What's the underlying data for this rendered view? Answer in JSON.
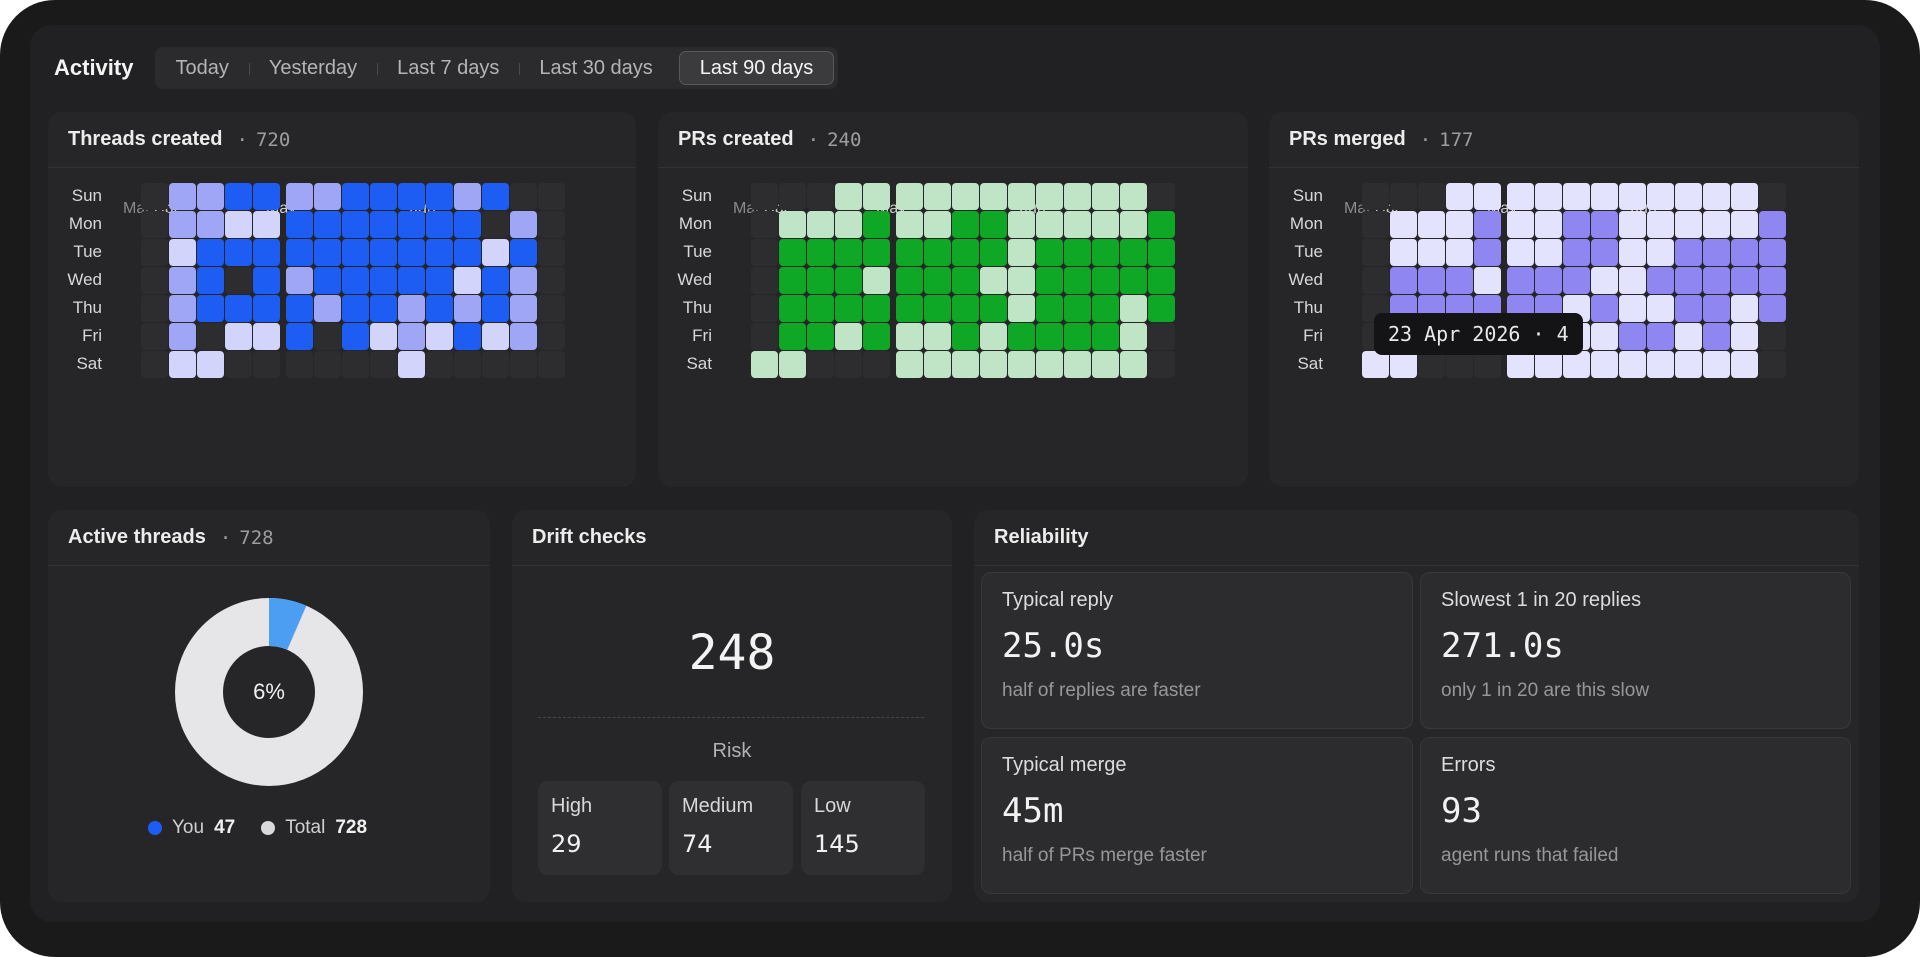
{
  "header": {
    "title": "Activity",
    "ranges": [
      "Today",
      "Yesterday",
      "Last 7 days",
      "Last 30 days",
      "Last 90 days"
    ],
    "active_range": "Last 90 days"
  },
  "heatmaps": [
    {
      "title": "Threads created",
      "count": "720",
      "months": [
        "Mar",
        "Apr",
        "May",
        "Jun"
      ],
      "days": [
        "Sun",
        "Mon",
        "Tue",
        "Wed",
        "Thu",
        "Fri",
        "Sat"
      ],
      "colors": [
        "#2d2d30",
        "#1e5df4",
        "#9ea6f5",
        "#d3d4fb"
      ],
      "levels": [
        [
          0,
          2,
          2,
          1,
          1,
          2,
          2,
          1,
          1,
          1,
          1,
          2,
          1,
          0,
          0
        ],
        [
          0,
          2,
          2,
          3,
          3,
          1,
          1,
          1,
          1,
          1,
          1,
          1,
          0,
          2,
          0
        ],
        [
          0,
          3,
          1,
          1,
          1,
          1,
          1,
          1,
          1,
          1,
          1,
          1,
          3,
          1,
          0
        ],
        [
          0,
          2,
          1,
          0,
          1,
          2,
          1,
          1,
          1,
          1,
          1,
          3,
          1,
          2,
          0
        ],
        [
          0,
          2,
          1,
          1,
          1,
          1,
          2,
          1,
          1,
          2,
          1,
          2,
          1,
          2,
          0
        ],
        [
          0,
          2,
          0,
          3,
          3,
          1,
          0,
          1,
          3,
          2,
          3,
          1,
          3,
          2,
          0
        ],
        [
          0,
          3,
          3,
          0,
          0,
          0,
          0,
          0,
          0,
          3,
          0,
          0,
          0,
          0,
          0
        ]
      ]
    },
    {
      "title": "PRs created",
      "count": "240",
      "months": [
        "Mar",
        "Apr",
        "May",
        "Jun"
      ],
      "days": [
        "Sun",
        "Mon",
        "Tue",
        "Wed",
        "Thu",
        "Fri",
        "Sat"
      ],
      "colors": [
        "#2d2d30",
        "#0ea726",
        "#bfe4c6"
      ],
      "levels": [
        [
          0,
          0,
          0,
          2,
          2,
          2,
          2,
          2,
          2,
          2,
          2,
          2,
          2,
          2,
          0
        ],
        [
          0,
          2,
          2,
          2,
          1,
          2,
          2,
          1,
          1,
          2,
          2,
          2,
          2,
          2,
          1
        ],
        [
          0,
          1,
          1,
          1,
          1,
          1,
          1,
          1,
          1,
          2,
          1,
          1,
          1,
          1,
          1
        ],
        [
          0,
          1,
          1,
          1,
          2,
          1,
          1,
          1,
          2,
          2,
          1,
          1,
          1,
          1,
          1
        ],
        [
          0,
          1,
          1,
          1,
          1,
          1,
          1,
          1,
          1,
          2,
          1,
          1,
          1,
          2,
          1
        ],
        [
          0,
          1,
          1,
          2,
          1,
          2,
          2,
          1,
          2,
          1,
          1,
          1,
          1,
          2,
          0
        ],
        [
          2,
          2,
          0,
          0,
          0,
          2,
          2,
          2,
          2,
          2,
          2,
          2,
          2,
          2,
          0
        ]
      ]
    },
    {
      "title": "PRs merged",
      "count": "177",
      "months": [
        "Mar",
        "Apr",
        "May",
        "Jun"
      ],
      "days": [
        "Sun",
        "Mon",
        "Tue",
        "Wed",
        "Thu",
        "Fri",
        "Sat"
      ],
      "colors": [
        "#2d2d30",
        "#8f86f2",
        "#e4e3fd"
      ],
      "levels": [
        [
          0,
          0,
          0,
          2,
          2,
          2,
          2,
          2,
          2,
          2,
          2,
          2,
          2,
          2,
          0
        ],
        [
          0,
          2,
          2,
          2,
          1,
          2,
          2,
          1,
          1,
          2,
          2,
          2,
          2,
          2,
          1
        ],
        [
          0,
          2,
          2,
          2,
          1,
          2,
          2,
          1,
          1,
          2,
          2,
          1,
          1,
          1,
          1
        ],
        [
          0,
          1,
          1,
          1,
          2,
          1,
          1,
          1,
          2,
          2,
          1,
          1,
          1,
          1,
          1
        ],
        [
          0,
          1,
          1,
          1,
          1,
          1,
          1,
          2,
          1,
          2,
          2,
          1,
          1,
          2,
          1
        ],
        [
          0,
          1,
          2,
          2,
          1,
          2,
          2,
          2,
          2,
          1,
          1,
          2,
          1,
          2,
          0
        ],
        [
          2,
          2,
          0,
          0,
          0,
          2,
          2,
          2,
          2,
          2,
          2,
          2,
          2,
          2,
          0
        ]
      ]
    }
  ],
  "tooltip": "23 Apr 2026 · 4",
  "active_threads": {
    "title": "Active threads",
    "count": "728",
    "percent_label": "6%",
    "you_fraction": 0.065,
    "you_color": "#4c9ef2",
    "rest_color": "#e6e6e9",
    "legend": [
      {
        "label": "You",
        "value": "47",
        "color": "#1e5df4"
      },
      {
        "label": "Total",
        "value": "728",
        "color": "#d9d9dc"
      }
    ]
  },
  "drift": {
    "title": "Drift checks",
    "total": "248",
    "risk_label": "Risk",
    "levels": [
      {
        "label": "High",
        "value": "29"
      },
      {
        "label": "Medium",
        "value": "74"
      },
      {
        "label": "Low",
        "value": "145"
      }
    ]
  },
  "reliability": {
    "title": "Reliability",
    "items": [
      {
        "title": "Typical reply",
        "value": "25.0s",
        "sub": "half of replies are faster"
      },
      {
        "title": "Slowest 1 in 20 replies",
        "value": "271.0s",
        "sub": "only 1 in 20 are this slow"
      },
      {
        "title": "Typical merge",
        "value": "45m",
        "sub": "half of PRs merge faster"
      },
      {
        "title": "Errors",
        "value": "93",
        "sub": "agent runs that failed"
      }
    ]
  }
}
